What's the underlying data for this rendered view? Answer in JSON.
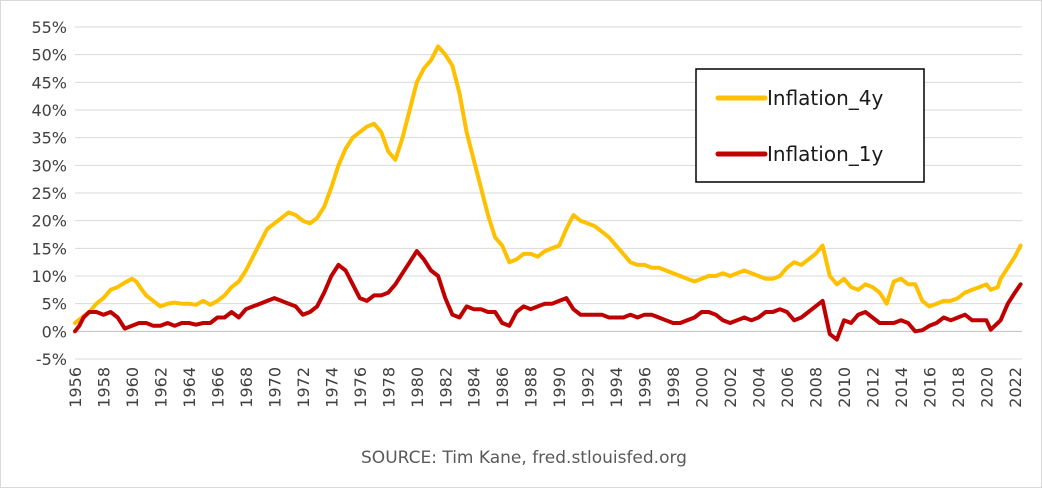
{
  "chart_data": {
    "type": "line",
    "title": "",
    "xlabel": "",
    "ylabel": "",
    "source": "SOURCE: Tim Kane, fred.stlouisfed.org",
    "ylim": [
      -5,
      55
    ],
    "xlim": [
      1956,
      2022.5
    ],
    "y_ticks": [
      "-5%",
      "0%",
      "5%",
      "10%",
      "15%",
      "20%",
      "25%",
      "30%",
      "35%",
      "40%",
      "45%",
      "50%",
      "55%"
    ],
    "x_ticks": [
      "1956",
      "1958",
      "1960",
      "1962",
      "1964",
      "1966",
      "1968",
      "1970",
      "1972",
      "1974",
      "1976",
      "1978",
      "1980",
      "1982",
      "1984",
      "1986",
      "1988",
      "1990",
      "1992",
      "1994",
      "1996",
      "1998",
      "2000",
      "2002",
      "2004",
      "2006",
      "2008",
      "2010",
      "2012",
      "2014",
      "2016",
      "2018",
      "2020",
      "2022"
    ],
    "grid": true,
    "legend_position": "top-right",
    "colors": {
      "grid": "#d9d9d9",
      "axis": "#bfbfbf"
    },
    "series": [
      {
        "name": "Inflation_4y",
        "color": "#FFC000",
        "points": [
          [
            1956.0,
            1.5
          ],
          [
            1956.5,
            2.5
          ],
          [
            1957.0,
            3.5
          ],
          [
            1957.5,
            5.0
          ],
          [
            1958.0,
            6.0
          ],
          [
            1958.5,
            7.5
          ],
          [
            1959.0,
            8.0
          ],
          [
            1959.5,
            8.8
          ],
          [
            1960.0,
            9.5
          ],
          [
            1960.3,
            9.0
          ],
          [
            1960.7,
            7.5
          ],
          [
            1961.0,
            6.5
          ],
          [
            1961.5,
            5.5
          ],
          [
            1962.0,
            4.5
          ],
          [
            1962.5,
            5.0
          ],
          [
            1963.0,
            5.2
          ],
          [
            1963.5,
            5.0
          ],
          [
            1964.0,
            5.0
          ],
          [
            1964.5,
            4.8
          ],
          [
            1965.0,
            5.5
          ],
          [
            1965.5,
            4.8
          ],
          [
            1966.0,
            5.5
          ],
          [
            1966.5,
            6.5
          ],
          [
            1967.0,
            8.0
          ],
          [
            1967.5,
            9.0
          ],
          [
            1968.0,
            11.0
          ],
          [
            1968.5,
            13.5
          ],
          [
            1969.0,
            16.0
          ],
          [
            1969.5,
            18.5
          ],
          [
            1970.0,
            19.5
          ],
          [
            1970.5,
            20.5
          ],
          [
            1971.0,
            21.5
          ],
          [
            1971.5,
            21.0
          ],
          [
            1972.0,
            20.0
          ],
          [
            1972.5,
            19.5
          ],
          [
            1973.0,
            20.5
          ],
          [
            1973.5,
            22.5
          ],
          [
            1974.0,
            26.0
          ],
          [
            1974.5,
            30.0
          ],
          [
            1975.0,
            33.0
          ],
          [
            1975.5,
            35.0
          ],
          [
            1976.0,
            36.0
          ],
          [
            1976.5,
            37.0
          ],
          [
            1977.0,
            37.5
          ],
          [
            1977.5,
            36.0
          ],
          [
            1978.0,
            32.5
          ],
          [
            1978.5,
            31.0
          ],
          [
            1979.0,
            35.0
          ],
          [
            1979.5,
            40.0
          ],
          [
            1980.0,
            45.0
          ],
          [
            1980.5,
            47.5
          ],
          [
            1981.0,
            49.0
          ],
          [
            1981.5,
            51.5
          ],
          [
            1982.0,
            50.0
          ],
          [
            1982.5,
            48.0
          ],
          [
            1983.0,
            43.0
          ],
          [
            1983.5,
            36.0
          ],
          [
            1984.0,
            31.0
          ],
          [
            1984.5,
            26.0
          ],
          [
            1985.0,
            21.0
          ],
          [
            1985.5,
            17.0
          ],
          [
            1986.0,
            15.5
          ],
          [
            1986.5,
            12.5
          ],
          [
            1987.0,
            13.0
          ],
          [
            1987.5,
            14.0
          ],
          [
            1988.0,
            14.0
          ],
          [
            1988.5,
            13.5
          ],
          [
            1989.0,
            14.5
          ],
          [
            1989.5,
            15.0
          ],
          [
            1990.0,
            15.5
          ],
          [
            1990.5,
            18.5
          ],
          [
            1991.0,
            21.0
          ],
          [
            1991.5,
            20.0
          ],
          [
            1992.0,
            19.5
          ],
          [
            1992.5,
            19.0
          ],
          [
            1993.0,
            18.0
          ],
          [
            1993.5,
            17.0
          ],
          [
            1994.0,
            15.5
          ],
          [
            1994.5,
            14.0
          ],
          [
            1995.0,
            12.5
          ],
          [
            1995.5,
            12.0
          ],
          [
            1996.0,
            12.0
          ],
          [
            1996.5,
            11.5
          ],
          [
            1997.0,
            11.5
          ],
          [
            1997.5,
            11.0
          ],
          [
            1998.0,
            10.5
          ],
          [
            1998.5,
            10.0
          ],
          [
            1999.0,
            9.5
          ],
          [
            1999.5,
            9.0
          ],
          [
            2000.0,
            9.5
          ],
          [
            2000.5,
            10.0
          ],
          [
            2001.0,
            10.0
          ],
          [
            2001.5,
            10.5
          ],
          [
            2002.0,
            10.0
          ],
          [
            2002.5,
            10.5
          ],
          [
            2003.0,
            11.0
          ],
          [
            2003.5,
            10.5
          ],
          [
            2004.0,
            10.0
          ],
          [
            2004.5,
            9.5
          ],
          [
            2005.0,
            9.5
          ],
          [
            2005.5,
            10.0
          ],
          [
            2006.0,
            11.5
          ],
          [
            2006.5,
            12.5
          ],
          [
            2007.0,
            12.0
          ],
          [
            2007.5,
            13.0
          ],
          [
            2008.0,
            14.0
          ],
          [
            2008.5,
            15.5
          ],
          [
            2009.0,
            10.0
          ],
          [
            2009.5,
            8.5
          ],
          [
            2010.0,
            9.5
          ],
          [
            2010.5,
            8.0
          ],
          [
            2011.0,
            7.5
          ],
          [
            2011.5,
            8.5
          ],
          [
            2012.0,
            8.0
          ],
          [
            2012.5,
            7.0
          ],
          [
            2013.0,
            5.0
          ],
          [
            2013.5,
            9.0
          ],
          [
            2014.0,
            9.5
          ],
          [
            2014.5,
            8.5
          ],
          [
            2015.0,
            8.5
          ],
          [
            2015.5,
            5.5
          ],
          [
            2016.0,
            4.5
          ],
          [
            2016.5,
            5.0
          ],
          [
            2017.0,
            5.5
          ],
          [
            2017.5,
            5.5
          ],
          [
            2018.0,
            6.0
          ],
          [
            2018.5,
            7.0
          ],
          [
            2019.0,
            7.5
          ],
          [
            2019.5,
            8.0
          ],
          [
            2020.0,
            8.5
          ],
          [
            2020.3,
            7.5
          ],
          [
            2020.8,
            8.0
          ],
          [
            2021.0,
            9.5
          ],
          [
            2021.5,
            11.5
          ],
          [
            2022.0,
            13.5
          ],
          [
            2022.4,
            15.5
          ]
        ]
      },
      {
        "name": "Inflation_1y",
        "color": "#C00000",
        "points": [
          [
            1956.0,
            0.0
          ],
          [
            1956.3,
            1.0
          ],
          [
            1956.6,
            2.5
          ],
          [
            1957.0,
            3.5
          ],
          [
            1957.5,
            3.5
          ],
          [
            1958.0,
            3.0
          ],
          [
            1958.5,
            3.5
          ],
          [
            1959.0,
            2.5
          ],
          [
            1959.5,
            0.5
          ],
          [
            1960.0,
            1.0
          ],
          [
            1960.5,
            1.5
          ],
          [
            1961.0,
            1.5
          ],
          [
            1961.5,
            1.0
          ],
          [
            1962.0,
            1.0
          ],
          [
            1962.5,
            1.5
          ],
          [
            1963.0,
            1.0
          ],
          [
            1963.5,
            1.5
          ],
          [
            1964.0,
            1.5
          ],
          [
            1964.5,
            1.2
          ],
          [
            1965.0,
            1.5
          ],
          [
            1965.5,
            1.5
          ],
          [
            1966.0,
            2.5
          ],
          [
            1966.5,
            2.5
          ],
          [
            1967.0,
            3.5
          ],
          [
            1967.5,
            2.5
          ],
          [
            1968.0,
            4.0
          ],
          [
            1968.5,
            4.5
          ],
          [
            1969.0,
            5.0
          ],
          [
            1969.5,
            5.5
          ],
          [
            1970.0,
            6.0
          ],
          [
            1970.5,
            5.5
          ],
          [
            1971.0,
            5.0
          ],
          [
            1971.5,
            4.5
          ],
          [
            1972.0,
            3.0
          ],
          [
            1972.5,
            3.5
          ],
          [
            1973.0,
            4.5
          ],
          [
            1973.5,
            7.0
          ],
          [
            1974.0,
            10.0
          ],
          [
            1974.5,
            12.0
          ],
          [
            1975.0,
            11.0
          ],
          [
            1975.5,
            8.5
          ],
          [
            1976.0,
            6.0
          ],
          [
            1976.5,
            5.5
          ],
          [
            1977.0,
            6.5
          ],
          [
            1977.5,
            6.5
          ],
          [
            1978.0,
            7.0
          ],
          [
            1978.5,
            8.5
          ],
          [
            1979.0,
            10.5
          ],
          [
            1979.5,
            12.5
          ],
          [
            1980.0,
            14.5
          ],
          [
            1980.5,
            13.0
          ],
          [
            1981.0,
            11.0
          ],
          [
            1981.5,
            10.0
          ],
          [
            1982.0,
            6.0
          ],
          [
            1982.5,
            3.0
          ],
          [
            1983.0,
            2.5
          ],
          [
            1983.5,
            4.5
          ],
          [
            1984.0,
            4.0
          ],
          [
            1984.5,
            4.0
          ],
          [
            1985.0,
            3.5
          ],
          [
            1985.5,
            3.5
          ],
          [
            1986.0,
            1.5
          ],
          [
            1986.5,
            1.0
          ],
          [
            1987.0,
            3.5
          ],
          [
            1987.5,
            4.5
          ],
          [
            1988.0,
            4.0
          ],
          [
            1988.5,
            4.5
          ],
          [
            1989.0,
            5.0
          ],
          [
            1989.5,
            5.0
          ],
          [
            1990.0,
            5.5
          ],
          [
            1990.5,
            6.0
          ],
          [
            1991.0,
            4.0
          ],
          [
            1991.5,
            3.0
          ],
          [
            1992.0,
            3.0
          ],
          [
            1992.5,
            3.0
          ],
          [
            1993.0,
            3.0
          ],
          [
            1993.5,
            2.5
          ],
          [
            1994.0,
            2.5
          ],
          [
            1994.5,
            2.5
          ],
          [
            1995.0,
            3.0
          ],
          [
            1995.5,
            2.5
          ],
          [
            1996.0,
            3.0
          ],
          [
            1996.5,
            3.0
          ],
          [
            1997.0,
            2.5
          ],
          [
            1997.5,
            2.0
          ],
          [
            1998.0,
            1.5
          ],
          [
            1998.5,
            1.5
          ],
          [
            1999.0,
            2.0
          ],
          [
            1999.5,
            2.5
          ],
          [
            2000.0,
            3.5
          ],
          [
            2000.5,
            3.5
          ],
          [
            2001.0,
            3.0
          ],
          [
            2001.5,
            2.0
          ],
          [
            2002.0,
            1.5
          ],
          [
            2002.5,
            2.0
          ],
          [
            2003.0,
            2.5
          ],
          [
            2003.5,
            2.0
          ],
          [
            2004.0,
            2.5
          ],
          [
            2004.5,
            3.5
          ],
          [
            2005.0,
            3.5
          ],
          [
            2005.5,
            4.0
          ],
          [
            2006.0,
            3.5
          ],
          [
            2006.5,
            2.0
          ],
          [
            2007.0,
            2.5
          ],
          [
            2007.5,
            3.5
          ],
          [
            2008.0,
            4.5
          ],
          [
            2008.5,
            5.5
          ],
          [
            2009.0,
            -0.5
          ],
          [
            2009.5,
            -1.5
          ],
          [
            2010.0,
            2.0
          ],
          [
            2010.5,
            1.5
          ],
          [
            2011.0,
            3.0
          ],
          [
            2011.5,
            3.5
          ],
          [
            2012.0,
            2.5
          ],
          [
            2012.5,
            1.5
          ],
          [
            2013.0,
            1.5
          ],
          [
            2013.5,
            1.5
          ],
          [
            2014.0,
            2.0
          ],
          [
            2014.5,
            1.5
          ],
          [
            2015.0,
            0.0
          ],
          [
            2015.5,
            0.2
          ],
          [
            2016.0,
            1.0
          ],
          [
            2016.5,
            1.5
          ],
          [
            2017.0,
            2.5
          ],
          [
            2017.5,
            2.0
          ],
          [
            2018.0,
            2.5
          ],
          [
            2018.5,
            3.0
          ],
          [
            2019.0,
            2.0
          ],
          [
            2019.5,
            2.0
          ],
          [
            2020.0,
            2.0
          ],
          [
            2020.3,
            0.3
          ],
          [
            2020.8,
            1.5
          ],
          [
            2021.0,
            2.0
          ],
          [
            2021.5,
            5.0
          ],
          [
            2022.0,
            7.0
          ],
          [
            2022.4,
            8.5
          ]
        ]
      }
    ]
  }
}
